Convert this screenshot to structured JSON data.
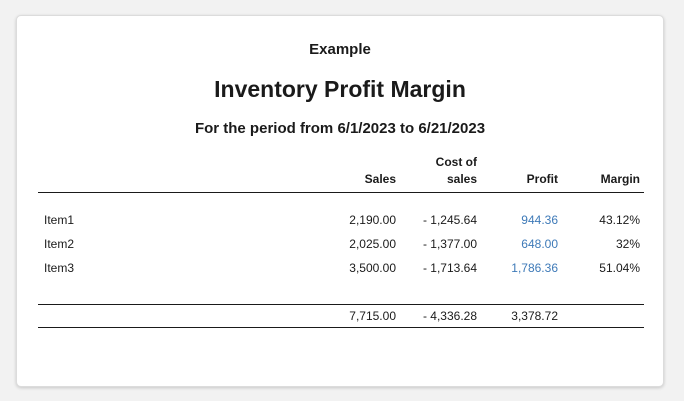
{
  "report": {
    "company": "Example",
    "title": "Inventory Profit Margin",
    "period": "For the period from 6/1/2023 to 6/21/2023"
  },
  "columns": {
    "sales": "Sales",
    "cost_line1": "Cost of",
    "cost_line2": "sales",
    "profit": "Profit",
    "margin": "Margin"
  },
  "rows": [
    {
      "name": "Item1",
      "sales": "2,190.00",
      "cost": "- 1,245.64",
      "profit": "944.36",
      "margin": "43.12%"
    },
    {
      "name": "Item2",
      "sales": "2,025.00",
      "cost": "- 1,377.00",
      "profit": "648.00",
      "margin": "32%"
    },
    {
      "name": "Item3",
      "sales": "3,500.00",
      "cost": "- 1,713.64",
      "profit": "1,786.36",
      "margin": "51.04%"
    }
  ],
  "totals": {
    "sales": "7,715.00",
    "cost": "- 4,336.28",
    "profit": "3,378.72",
    "margin": ""
  },
  "colors": {
    "link": "#3e7ab8",
    "text": "#1a1a1a",
    "background": "#f2f2f2",
    "card": "#ffffff"
  }
}
